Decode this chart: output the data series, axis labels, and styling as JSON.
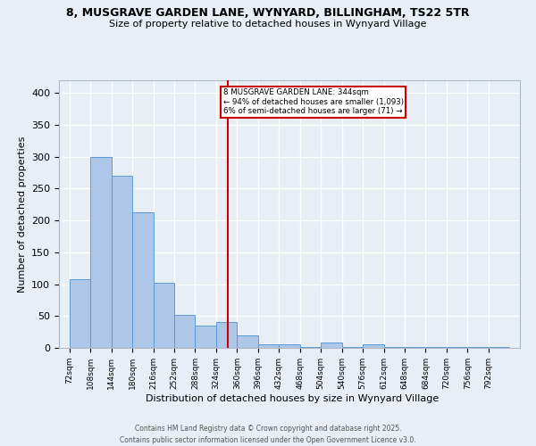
{
  "title_line1": "8, MUSGRAVE GARDEN LANE, WYNYARD, BILLINGHAM, TS22 5TR",
  "title_line2": "Size of property relative to detached houses in Wynyard Village",
  "xlabel": "Distribution of detached houses by size in Wynyard Village",
  "ylabel": "Number of detached properties",
  "bin_starts": [
    72,
    108,
    144,
    180,
    216,
    252,
    288,
    324,
    360,
    396,
    432,
    468,
    504,
    540,
    576,
    612,
    648,
    684,
    720,
    756,
    792
  ],
  "bin_width": 36,
  "bar_heights": [
    108,
    300,
    270,
    213,
    102,
    52,
    35,
    40,
    20,
    6,
    6,
    2,
    8,
    2,
    5,
    2,
    2,
    2,
    2,
    2,
    2
  ],
  "bar_color": "#aec6e8",
  "bar_edge_color": "#5b9bd5",
  "background_color": "#e8eef5",
  "grid_color": "#ffffff",
  "vline_x": 344,
  "vline_color": "#cc0000",
  "annotation_text": "8 MUSGRAVE GARDEN LANE: 344sqm\n← 94% of detached houses are smaller (1,093)\n6% of semi-detached houses are larger (71) →",
  "annotation_box_color": "#cc0000",
  "footer_line1": "Contains HM Land Registry data © Crown copyright and database right 2025.",
  "footer_line2": "Contains public sector information licensed under the Open Government Licence v3.0.",
  "ylim": [
    0,
    420
  ],
  "yticks": [
    0,
    50,
    100,
    150,
    200,
    250,
    300,
    350,
    400
  ]
}
